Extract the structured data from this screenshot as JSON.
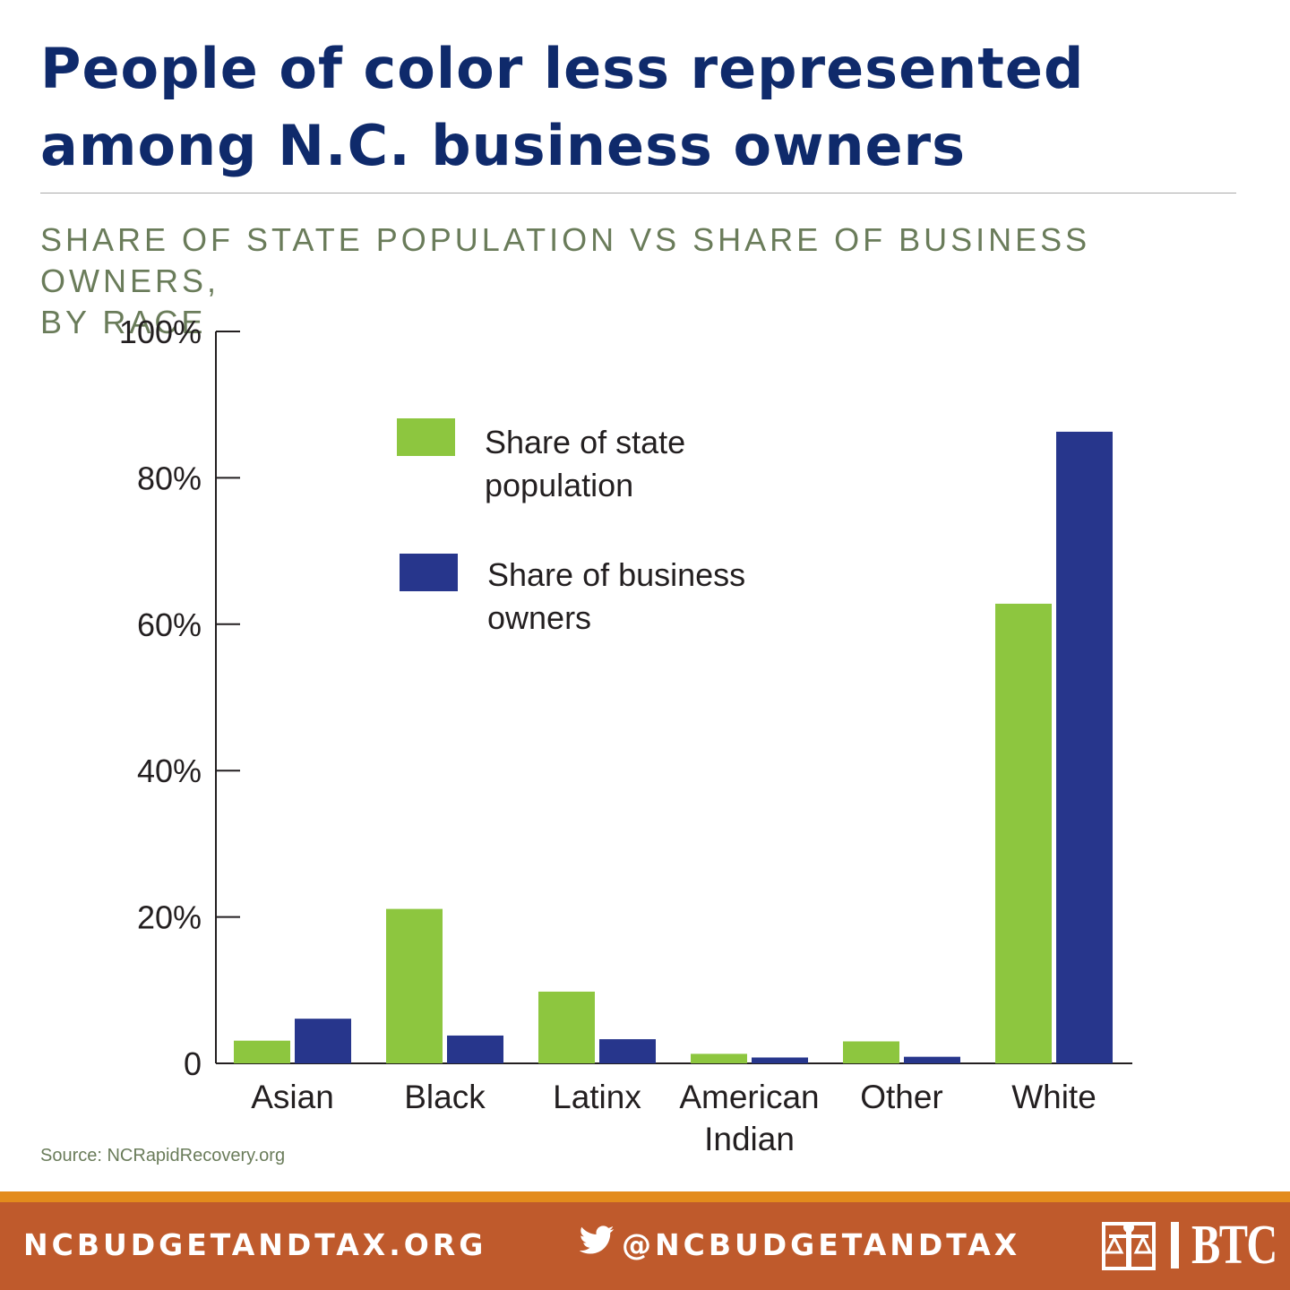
{
  "title_line1": "People of color less represented",
  "title_line2": "among N.C. business owners",
  "subtitle_line1": "SHARE OF STATE POPULATION VS SHARE OF BUSINESS OWNERS,",
  "subtitle_line2": "BY RACE",
  "source": "Source: NCRapidRecovery.org",
  "footer": {
    "website": "NCBUDGETANDTAX.ORG",
    "handle": "@NCBUDGETANDTAX",
    "logo_text": "BTC",
    "logo_icon": "scales-of-justice-icon",
    "social_icon": "twitter-bird-icon"
  },
  "colors": {
    "title": "#0f2a6b",
    "population": "#8dc63f",
    "owners": "#27368c",
    "footer": "#bf5a2c",
    "footer_strip": "#e38b1c"
  },
  "chart_data": {
    "type": "bar",
    "categories": [
      [
        "Asian"
      ],
      [
        "Black"
      ],
      [
        "Latinx"
      ],
      [
        "American",
        "Indian"
      ],
      [
        "Other"
      ],
      [
        "White"
      ]
    ],
    "series": [
      {
        "name": "Share of state population",
        "legend_lines": [
          "Share of state",
          "population"
        ],
        "values": [
          3.1,
          21.1,
          9.8,
          1.3,
          3.0,
          62.8
        ]
      },
      {
        "name": "Share of business owners",
        "legend_lines": [
          "Share of business",
          "owners"
        ],
        "values": [
          6.1,
          3.8,
          3.3,
          0.8,
          0.9,
          86.3
        ]
      }
    ],
    "yticks": [
      "0",
      "20%",
      "40%",
      "60%",
      "80%",
      "100%"
    ],
    "ylim": [
      0,
      100
    ],
    "legend_position": "upper-center",
    "grid": false
  }
}
